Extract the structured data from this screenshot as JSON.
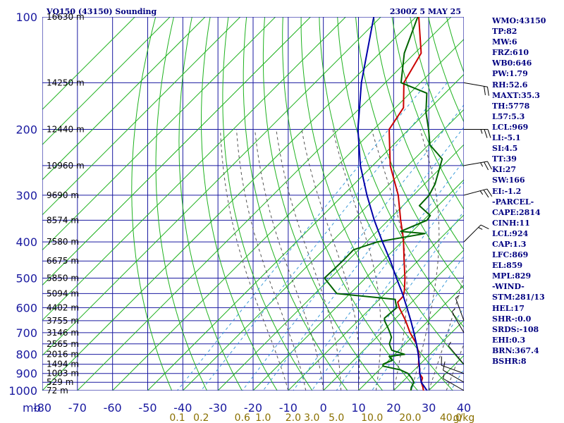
{
  "header": {
    "station": "VQ150 (43150) Sounding",
    "valid_time": "2300Z  5 MAY 25"
  },
  "parameters": [
    "WMO:43150",
    "TP:82",
    "MW:6",
    "FRZ:610",
    "WB0:646",
    "PW:1.79",
    "RH:52.6",
    "MAXT:35.3",
    "TH:5778",
    "L57:5.3",
    "LCL:969",
    "LI:-5.1",
    "SI:4.5",
    "TT:39",
    "KI:27",
    "SW:166",
    "EI:-1.2",
    "-PARCEL-",
    "CAPE:2814",
    "CINH:11",
    "LCL:924",
    "CAP:1.3",
    "LFC:869",
    "EL:859",
    "MPL:829",
    "-WIND-",
    "STM:281/13",
    "HEL:17",
    "SHR-:0.0",
    "SRDS:-108",
    "EHI:0.3",
    "BRN:367.4",
    "BSHR:8"
  ],
  "colors": {
    "frame": "#1a1aa0",
    "isotherm_dry_adiabat": "#1fb21f",
    "mixing_ratio": "#3a9ad9",
    "moist_adiabat": "#555555",
    "temperature": "#cc0000",
    "dewpoint": "#006400",
    "parcel": "#0000aa",
    "axis_text": "#1a1aa0",
    "mixing_ratio_text": "#8a7000",
    "header_text": "#000080"
  },
  "chart_data": {
    "type": "line",
    "subtype": "skew-T log-P sounding",
    "pressure_axis": {
      "scale": "log",
      "range_mb": [
        100,
        1000
      ],
      "ticks": [
        100,
        200,
        300,
        400,
        500,
        600,
        700,
        800,
        900,
        1000
      ],
      "unit_label": "mb"
    },
    "temperature_axis": {
      "range_c": [
        -80,
        40
      ],
      "ticks": [
        -80,
        -70,
        -60,
        -50,
        -40,
        -30,
        -20,
        -10,
        0,
        10,
        20,
        30,
        40
      ]
    },
    "height_labels": [
      {
        "p": 100,
        "label": "16630 m"
      },
      {
        "p": 150,
        "label": "14250 m"
      },
      {
        "p": 200,
        "label": "12440 m"
      },
      {
        "p": 250,
        "label": "10960 m"
      },
      {
        "p": 300,
        "label": "9690 m"
      },
      {
        "p": 350,
        "label": "8574 m"
      },
      {
        "p": 400,
        "label": "7580 m"
      },
      {
        "p": 450,
        "label": "6675 m"
      },
      {
        "p": 500,
        "label": "5850 m"
      },
      {
        "p": 550,
        "label": "5094 m"
      },
      {
        "p": 600,
        "label": "4402 m"
      },
      {
        "p": 650,
        "label": "3755 m"
      },
      {
        "p": 700,
        "label": "3146 m"
      },
      {
        "p": 750,
        "label": "2565 m"
      },
      {
        "p": 800,
        "label": "2016 m"
      },
      {
        "p": 850,
        "label": "1494 m"
      },
      {
        "p": 900,
        "label": "1003 m"
      },
      {
        "p": 950,
        "label": "529 m"
      },
      {
        "p": 1000,
        "label": "72 m"
      }
    ],
    "mixing_ratio_labels": [
      {
        "w": 0.1,
        "label": "0.1"
      },
      {
        "w": 0.2,
        "label": "0.2"
      },
      {
        "w": 0.6,
        "label": "0.6"
      },
      {
        "w": 1.0,
        "label": "1.0"
      },
      {
        "w": 2.0,
        "label": "2.0"
      },
      {
        "w": 3.0,
        "label": "3.0"
      },
      {
        "w": 5.0,
        "label": "5.0"
      },
      {
        "w": 10.0,
        "label": "10.0"
      },
      {
        "w": 20.0,
        "label": "20.0"
      },
      {
        "w": 40.0,
        "label": "40.0"
      }
    ],
    "mixing_ratio_unit": "g/kg",
    "series": [
      {
        "kind": "temperature",
        "points": [
          [
            1000,
            28.5
          ],
          [
            980,
            27.4
          ],
          [
            950,
            25.5
          ],
          [
            925,
            24.6
          ],
          [
            900,
            22.5
          ],
          [
            875,
            21.3
          ],
          [
            850,
            19.6
          ],
          [
            800,
            16.9
          ],
          [
            750,
            13.2
          ],
          [
            700,
            8.2
          ],
          [
            650,
            3.5
          ],
          [
            600,
            -2.0
          ],
          [
            580,
            -4.0
          ],
          [
            560,
            -4.1
          ],
          [
            540,
            -5.4
          ],
          [
            500,
            -8.8
          ],
          [
            450,
            -13.9
          ],
          [
            400,
            -19.5
          ],
          [
            380,
            -22.1
          ],
          [
            350,
            -26.5
          ],
          [
            300,
            -34.3
          ],
          [
            250,
            -45.0
          ],
          [
            200,
            -55.6
          ],
          [
            175,
            -57.7
          ],
          [
            150,
            -64.7
          ],
          [
            125,
            -68.2
          ],
          [
            100,
            -79.2
          ]
        ]
      },
      {
        "kind": "dewpoint",
        "points": [
          [
            1000,
            24.9
          ],
          [
            980,
            24.1
          ],
          [
            950,
            23.4
          ],
          [
            925,
            21.5
          ],
          [
            900,
            19.2
          ],
          [
            880,
            16.0
          ],
          [
            860,
            10.0
          ],
          [
            850,
            9.5
          ],
          [
            830,
            11.0
          ],
          [
            810,
            9.0
          ],
          [
            800,
            12.8
          ],
          [
            780,
            8.0
          ],
          [
            750,
            5.5
          ],
          [
            720,
            4.2
          ],
          [
            700,
            2.5
          ],
          [
            680,
            0.6
          ],
          [
            650,
            -2.5
          ],
          [
            640,
            -3.2
          ],
          [
            600,
            -2.7
          ],
          [
            580,
            -4.6
          ],
          [
            570,
            -5.5
          ],
          [
            550,
            -23.8
          ],
          [
            500,
            -31.7
          ],
          [
            450,
            -31.4
          ],
          [
            420,
            -31.5
          ],
          [
            400,
            -26.9
          ],
          [
            380,
            -15.8
          ],
          [
            375,
            -23.3
          ],
          [
            350,
            -19.0
          ],
          [
            340,
            -19.4
          ],
          [
            320,
            -25.3
          ],
          [
            300,
            -25.5
          ],
          [
            280,
            -27.0
          ],
          [
            240,
            -32.1
          ],
          [
            220,
            -39.6
          ],
          [
            200,
            -44.4
          ],
          [
            180,
            -50.0
          ],
          [
            160,
            -55.2
          ],
          [
            150,
            -65.5
          ],
          [
            125,
            -73.0
          ],
          [
            100,
            -79.5
          ]
        ]
      },
      {
        "kind": "parcel",
        "points": [
          [
            1000,
            29.5
          ],
          [
            950,
            25.5
          ],
          [
            900,
            22.6
          ],
          [
            850,
            19.8
          ],
          [
            800,
            16.7
          ],
          [
            750,
            13.2
          ],
          [
            700,
            9.3
          ],
          [
            650,
            5.0
          ],
          [
            600,
            0.2
          ],
          [
            550,
            -5.1
          ],
          [
            500,
            -11.2
          ],
          [
            450,
            -17.8
          ],
          [
            400,
            -25.5
          ],
          [
            350,
            -34.0
          ],
          [
            300,
            -43.2
          ],
          [
            250,
            -53.5
          ],
          [
            200,
            -64.5
          ],
          [
            150,
            -76.8
          ],
          [
            100,
            -92.0
          ]
        ]
      }
    ],
    "wind_barbs": [
      {
        "p": 1000,
        "direction_deg": 300,
        "speed_kt": 5
      },
      {
        "p": 950,
        "direction_deg": 300,
        "speed_kt": 10
      },
      {
        "p": 900,
        "direction_deg": 290,
        "speed_kt": 10
      },
      {
        "p": 850,
        "direction_deg": 320,
        "speed_kt": 5
      },
      {
        "p": 700,
        "direction_deg": 330,
        "speed_kt": 5
      },
      {
        "p": 650,
        "direction_deg": 340,
        "speed_kt": 5
      },
      {
        "p": 400,
        "direction_deg": 45,
        "speed_kt": 15
      },
      {
        "p": 300,
        "direction_deg": 75,
        "speed_kt": 25
      },
      {
        "p": 250,
        "direction_deg": 80,
        "speed_kt": 25
      },
      {
        "p": 200,
        "direction_deg": 90,
        "speed_kt": 25
      },
      {
        "p": 150,
        "direction_deg": 100,
        "speed_kt": 20
      }
    ]
  }
}
